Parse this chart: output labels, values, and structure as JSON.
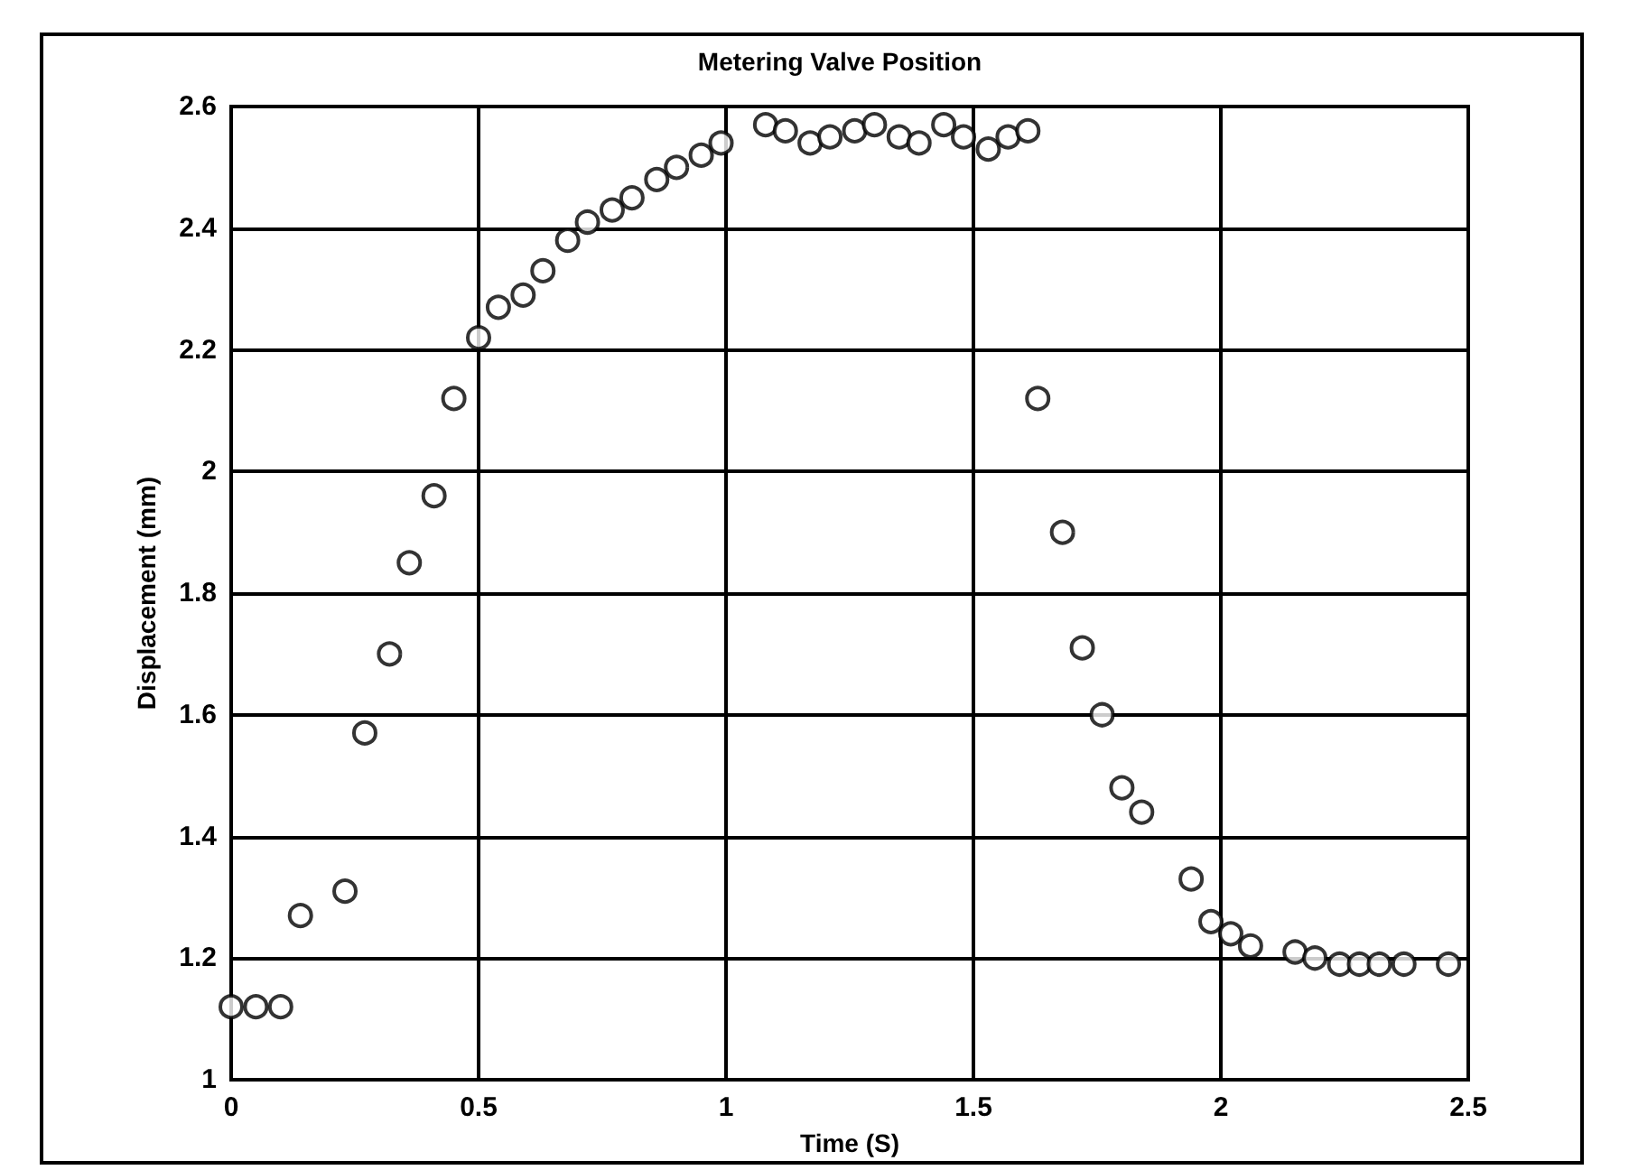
{
  "chart_data": {
    "type": "scatter",
    "title": "Metering Valve Position",
    "xlabel": "Time (S)",
    "ylabel": "Displacement (mm)",
    "x": [
      0,
      0.05,
      0.1,
      0.14,
      0.23,
      0.27,
      0.32,
      0.36,
      0.41,
      0.45,
      0.5,
      0.54,
      0.59,
      0.63,
      0.68,
      0.72,
      0.77,
      0.81,
      0.86,
      0.9,
      0.95,
      0.99,
      1.08,
      1.12,
      1.17,
      1.21,
      1.26,
      1.3,
      1.35,
      1.39,
      1.44,
      1.48,
      1.53,
      1.57,
      1.61,
      1.63,
      1.68,
      1.72,
      1.76,
      1.8,
      1.84,
      1.94,
      1.98,
      2.02,
      2.06,
      2.15,
      2.19,
      2.24,
      2.28,
      2.32,
      2.37,
      2.46
    ],
    "series": [
      {
        "color": "#000000",
        "values": [
          1.12,
          1.12,
          1.12,
          1.27,
          1.31,
          1.57,
          1.7,
          1.85,
          1.96,
          2.12,
          2.22,
          2.27,
          2.29,
          2.33,
          2.38,
          2.41,
          2.43,
          2.45,
          2.48,
          2.5,
          2.52,
          2.54,
          2.57,
          2.56,
          2.54,
          2.55,
          2.56,
          2.57,
          2.55,
          2.54,
          2.57,
          2.55,
          2.53,
          2.55,
          2.56,
          2.12,
          1.9,
          1.71,
          1.6,
          1.48,
          1.44,
          1.33,
          1.26,
          1.24,
          1.22,
          1.21,
          1.2,
          1.19,
          1.19,
          1.19,
          1.19,
          1.19
        ]
      }
    ],
    "xlim": [
      0,
      2.5
    ],
    "xticks": [
      0,
      0.5,
      1,
      1.5,
      2,
      2.5
    ],
    "ylim": [
      1,
      2.6
    ],
    "yticks": [
      1,
      1.2,
      1.4,
      1.6,
      1.8,
      2,
      2.2,
      2.4,
      2.6
    ],
    "grid": true,
    "marker": "circle"
  }
}
